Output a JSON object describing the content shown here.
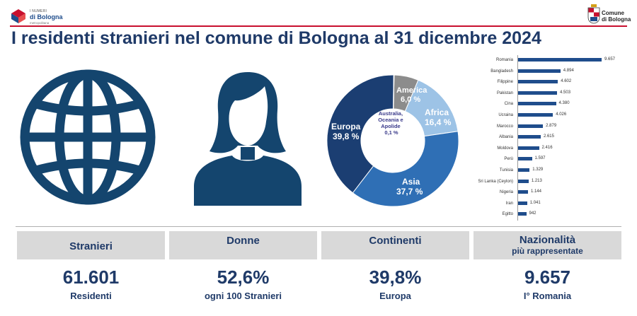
{
  "header": {
    "brand_small": "I NUMERI",
    "brand_main": "di Bologna",
    "brand_sub": "metropolitana",
    "city_logo_line1": "Comune",
    "city_logo_line2": "di Bologna",
    "title": "I residenti stranieri nel comune di Bologna al 31 dicembre 2024"
  },
  "colors": {
    "navy": "#1f3a68",
    "accent_red": "#c8102e",
    "icon_blue": "#14456e",
    "box_gray": "#d9d9d9"
  },
  "donut_labels": {
    "europa": [
      "Europa",
      "39,8 %"
    ],
    "asia": [
      "Asia",
      "37,7 %"
    ],
    "africa": [
      "Africa",
      "16,4 %"
    ],
    "america": [
      "America",
      "6,0 %"
    ],
    "oceania": [
      "Australia,",
      "Oceania e",
      "Apolide",
      "0,1 %"
    ]
  },
  "chart_data": [
    {
      "type": "pie",
      "title": "Continenti",
      "categories": [
        "Europa",
        "Asia",
        "Africa",
        "America",
        "Australia, Oceania e Apolide"
      ],
      "values": [
        39.8,
        37.7,
        16.4,
        6.0,
        0.1
      ],
      "value_labels": [
        "39,8 %",
        "37,7 %",
        "16,4 %",
        "6,0 %",
        "0,1 %"
      ],
      "colors": [
        "#1b3e72",
        "#2f6fb5",
        "#9dc3e6",
        "#8c8c8c",
        "#5b9bd5"
      ]
    },
    {
      "type": "bar",
      "orientation": "horizontal",
      "title": "Nazionalità",
      "categories": [
        "Romania",
        "Bangladesh",
        "Filippine",
        "Pakistan",
        "Cina",
        "Ucraina",
        "Marocco",
        "Albania",
        "Moldova",
        "Perù",
        "Tunisia",
        "Sri Lanka (Ceylon)",
        "Nigeria",
        "Iran",
        "Egitto"
      ],
      "values": [
        9657,
        4894,
        4602,
        4503,
        4380,
        4026,
        2879,
        2615,
        2416,
        1597,
        1329,
        1213,
        1144,
        1041,
        942
      ],
      "value_labels": [
        "9.657",
        "4.894",
        "4.602",
        "4.503",
        "4.380",
        "4.026",
        "2.879",
        "2.615",
        "2.416",
        "1.597",
        "1.329",
        "1.213",
        "1.144",
        "1.041",
        "942"
      ],
      "xlim": [
        0,
        10000
      ]
    }
  ],
  "kpis": [
    {
      "heading": "Stranieri",
      "heading_sub": "",
      "value": "61.601",
      "caption": "Residenti"
    },
    {
      "heading": "Donne",
      "heading_sub": "",
      "value": "52,6%",
      "caption": "ogni 100 Stranieri"
    },
    {
      "heading": "Continenti",
      "heading_sub": "",
      "value": "39,8%",
      "caption": "Europa"
    },
    {
      "heading": "Nazionalità",
      "heading_sub": "più rappresentate",
      "value": "9.657",
      "caption": "I° Romania"
    }
  ]
}
